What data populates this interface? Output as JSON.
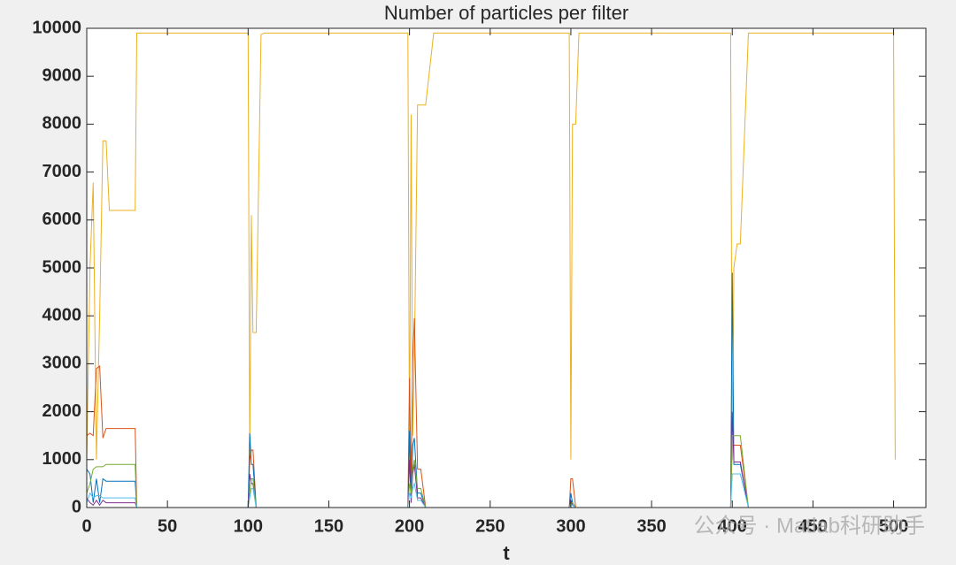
{
  "chart_data": {
    "type": "line",
    "title": "Number of particles per filter",
    "xlabel": "t",
    "watermark": "公众号 · Matlab科研助手",
    "x": [
      0,
      2,
      4,
      6,
      8,
      10,
      12,
      14,
      30,
      31,
      100,
      101,
      102,
      103,
      105,
      108,
      110,
      199,
      200,
      201,
      202,
      203,
      205,
      207,
      210,
      215,
      299,
      300,
      301,
      303,
      305,
      399,
      400,
      401,
      403,
      405,
      410,
      500,
      501
    ],
    "series": [
      {
        "color": "#EDB120",
        "values": [
          1000,
          5000,
          6780,
          1000,
          4000,
          7650,
          7650,
          6200,
          6200,
          9900,
          9900,
          1000,
          6100,
          3650,
          3650,
          9870,
          9900,
          9900,
          1000,
          8200,
          1500,
          3000,
          8400,
          8400,
          8400,
          9900,
          9900,
          1000,
          8000,
          8000,
          9900,
          9900,
          1000,
          5000,
          5500,
          5500,
          9900,
          9900,
          1000
        ]
      },
      {
        "color": "#D95319",
        "values": [
          1500,
          1550,
          1500,
          2900,
          2950,
          1450,
          1650,
          1650,
          1650,
          0,
          0,
          1000,
          1200,
          1200,
          0,
          0,
          0,
          0,
          2700,
          500,
          3100,
          3950,
          800,
          800,
          0,
          0,
          0,
          600,
          600,
          0,
          0,
          0,
          1300,
          1300,
          1300,
          1300,
          0,
          0,
          0
        ]
      },
      {
        "color": "#0072BD",
        "values": [
          800,
          700,
          100,
          600,
          100,
          600,
          550,
          550,
          550,
          0,
          0,
          1550,
          900,
          900,
          0,
          0,
          0,
          0,
          1600,
          200,
          1300,
          1450,
          300,
          300,
          0,
          0,
          0,
          300,
          100,
          0,
          0,
          0,
          4900,
          900,
          900,
          900,
          0,
          0,
          0
        ]
      },
      {
        "color": "#7E2F8E",
        "values": [
          200,
          100,
          50,
          150,
          50,
          150,
          100,
          100,
          100,
          0,
          0,
          700,
          500,
          500,
          0,
          0,
          0,
          0,
          1000,
          100,
          700,
          900,
          200,
          200,
          0,
          0,
          0,
          150,
          50,
          0,
          0,
          0,
          2000,
          950,
          950,
          950,
          0,
          0,
          0
        ]
      },
      {
        "color": "#77AC30",
        "values": [
          300,
          500,
          800,
          850,
          850,
          850,
          900,
          900,
          900,
          0,
          0,
          300,
          600,
          600,
          0,
          0,
          0,
          0,
          500,
          300,
          800,
          1000,
          400,
          400,
          0,
          0,
          0,
          100,
          100,
          0,
          0,
          0,
          1500,
          1500,
          1500,
          1500,
          0,
          0,
          0
        ]
      },
      {
        "color": "#4DBEEE",
        "values": [
          100,
          300,
          200,
          250,
          250,
          200,
          200,
          200,
          200,
          0,
          0,
          200,
          400,
          400,
          0,
          0,
          0,
          0,
          300,
          200,
          400,
          500,
          150,
          150,
          0,
          0,
          0,
          50,
          50,
          0,
          0,
          0,
          700,
          700,
          700,
          700,
          0,
          0,
          0
        ]
      }
    ],
    "xlim": [
      0,
      520
    ],
    "ylim": [
      0,
      10000
    ],
    "xticks": [
      0,
      50,
      100,
      150,
      200,
      250,
      300,
      350,
      400,
      450,
      500
    ],
    "yticks": [
      0,
      1000,
      2000,
      3000,
      4000,
      5000,
      6000,
      7000,
      8000,
      9000,
      10000
    ]
  }
}
